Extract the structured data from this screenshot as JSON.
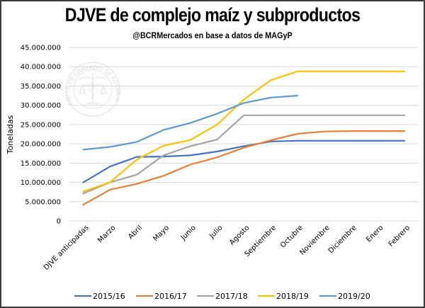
{
  "chart_data": {
    "type": "line",
    "title": "DJVE de complejo maíz y subproductos",
    "subtitle": "@BCRMercados  en base a datos de MAGyP",
    "xlabel": "",
    "ylabel": "Toneladas",
    "ylim": [
      0,
      45000000
    ],
    "yticks": [
      0,
      5000000,
      10000000,
      15000000,
      20000000,
      25000000,
      30000000,
      35000000,
      40000000,
      45000000
    ],
    "ytick_labels": [
      "0",
      "5.000.000",
      "10.000.000",
      "15.000.000",
      "20.000.000",
      "25.000.000",
      "30.000.000",
      "35.000.000",
      "40.000.000",
      "45.000.000"
    ],
    "grid": true,
    "legend_position": "bottom",
    "categories": [
      "DJVE anticipadas",
      "Marzo",
      "Abril",
      "Mayo",
      "Junio",
      "Julio",
      "Agosto",
      "Septiembre",
      "Octubre",
      "Noviembre",
      "Diciembre",
      "Enero",
      "Febrero"
    ],
    "series": [
      {
        "name": "2015/16",
        "color": "#4472C4",
        "values": [
          10000000,
          14100000,
          16600000,
          16700000,
          17000000,
          18000000,
          19400000,
          20600000,
          20800000,
          20800000,
          20800000,
          20800000,
          20800000
        ]
      },
      {
        "name": "2016/17",
        "color": "#ED7D31",
        "values": [
          4200000,
          8100000,
          9600000,
          11700000,
          14600000,
          16500000,
          19000000,
          20900000,
          22600000,
          23200000,
          23300000,
          23300000,
          23300000
        ]
      },
      {
        "name": "2017/18",
        "color": "#A5A5A5",
        "values": [
          7100000,
          10000000,
          12000000,
          17000000,
          19400000,
          21100000,
          27400000,
          27400000,
          27400000,
          27400000,
          27400000,
          27400000,
          27400000
        ]
      },
      {
        "name": "2018/19",
        "color": "#FFC000",
        "values": [
          7600000,
          10000000,
          15900000,
          19500000,
          21000000,
          25000000,
          31500000,
          36500000,
          38800000,
          38800000,
          38800000,
          38800000,
          38800000
        ]
      },
      {
        "name": "2019/20",
        "color": "#5B9BD5",
        "values": [
          18500000,
          19200000,
          20500000,
          23600000,
          25400000,
          27800000,
          30600000,
          32000000,
          32500000,
          null,
          null,
          null,
          null
        ]
      }
    ]
  },
  "watermark": {
    "text": "BOLSA DE COMERCIO DE ROSARIO"
  }
}
